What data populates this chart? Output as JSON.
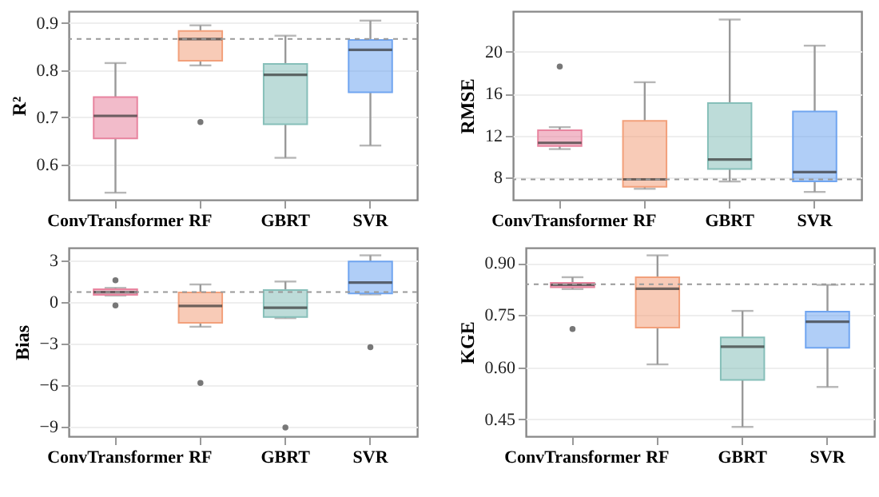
{
  "chart_data": [
    {
      "type": "box",
      "ylabel": "R²",
      "categories": [
        "ConvTransformer",
        "RF",
        "GBRT",
        "SVR"
      ],
      "colors": [
        "#e8849f",
        "#f2a07b",
        "#86bfb9",
        "#70a5f0"
      ],
      "ylim": [
        0.525,
        0.925
      ],
      "yticks": [
        0.6,
        0.7,
        0.8,
        0.9
      ],
      "grid": "y",
      "boxes": [
        {
          "low": 0.54,
          "q1": 0.655,
          "median": 0.703,
          "q3": 0.743,
          "high": 0.815
        },
        {
          "low": 0.81,
          "q1": 0.82,
          "median": 0.866,
          "q3": 0.883,
          "high": 0.895,
          "outliers": [
            0.69
          ]
        },
        {
          "low": 0.614,
          "q1": 0.685,
          "median": 0.79,
          "q3": 0.813,
          "high": 0.873
        },
        {
          "low": 0.64,
          "q1": 0.753,
          "median": 0.843,
          "q3": 0.864,
          "high": 0.905
        }
      ],
      "ref_lines": [
        {
          "axis": "y",
          "value": 0.866,
          "color": "#999999",
          "line_style": "dashed"
        }
      ]
    },
    {
      "type": "box",
      "ylabel": "RMSE",
      "categories": [
        "ConvTransformer",
        "RF",
        "GBRT",
        "SVR"
      ],
      "colors": [
        "#e8849f",
        "#f2a07b",
        "#86bfb9",
        "#70a5f0"
      ],
      "ylim": [
        5.85,
        23.9
      ],
      "yticks": [
        8,
        12,
        16,
        20
      ],
      "grid": "y",
      "boxes": [
        {
          "low": 10.7,
          "q1": 11.0,
          "median": 11.3,
          "q3": 12.5,
          "high": 12.8,
          "outliers": [
            18.6
          ]
        },
        {
          "low": 6.9,
          "q1": 7.1,
          "median": 7.8,
          "q3": 13.4,
          "high": 17.1
        },
        {
          "low": 7.6,
          "q1": 8.8,
          "median": 9.7,
          "q3": 15.1,
          "high": 23.1
        },
        {
          "low": 6.6,
          "q1": 7.6,
          "median": 8.5,
          "q3": 14.3,
          "high": 20.6
        }
      ],
      "ref_lines": [
        {
          "axis": "y",
          "value": 7.8,
          "color": "#999999",
          "line_style": "dashed"
        }
      ]
    },
    {
      "type": "box",
      "ylabel": "Bias",
      "categories": [
        "ConvTransformer",
        "RF",
        "GBRT",
        "SVR"
      ],
      "colors": [
        "#e8849f",
        "#f2a07b",
        "#86bfb9",
        "#70a5f0"
      ],
      "ylim": [
        -9.7,
        3.9
      ],
      "yticks": [
        -9,
        -6,
        -3,
        0,
        3
      ],
      "grid": "y",
      "boxes": [
        {
          "low": 0.45,
          "q1": 0.5,
          "median": 0.7,
          "q3": 0.9,
          "high": 1.0,
          "outliers": [
            1.55,
            -0.26
          ]
        },
        {
          "low": -1.8,
          "q1": -1.52,
          "median": -0.3,
          "q3": 0.67,
          "high": 1.25,
          "outliers": [
            -5.85
          ]
        },
        {
          "low": -1.18,
          "q1": -1.1,
          "median": -0.43,
          "q3": 0.84,
          "high": 1.46,
          "outliers": [
            -9.07
          ]
        },
        {
          "low": 0.53,
          "q1": 0.6,
          "median": 1.39,
          "q3": 2.9,
          "high": 3.35,
          "outliers": [
            -3.27
          ]
        }
      ],
      "ref_lines": [
        {
          "axis": "y",
          "value": 0.7,
          "color": "#999999",
          "line_style": "dashed"
        }
      ]
    },
    {
      "type": "box",
      "ylabel": "KGE",
      "categories": [
        "ConvTransformer",
        "RF",
        "GBRT",
        "SVR"
      ],
      "colors": [
        "#e8849f",
        "#f2a07b",
        "#86bfb9",
        "#70a5f0"
      ],
      "ylim": [
        0.401,
        0.944
      ],
      "yticks": [
        {
          "value": 0.45,
          "label": "0.45"
        },
        {
          "value": 0.6,
          "label": "0.60"
        },
        {
          "value": 0.75,
          "label": "0.75"
        },
        {
          "value": 0.9,
          "label": "0.90"
        }
      ],
      "grid": "y",
      "boxes": [
        {
          "low": 0.825,
          "q1": 0.83,
          "median": 0.837,
          "q3": 0.843,
          "high": 0.859,
          "outliers": [
            0.71
          ]
        },
        {
          "low": 0.608,
          "q1": 0.714,
          "median": 0.826,
          "q3": 0.859,
          "high": 0.922
        },
        {
          "low": 0.428,
          "q1": 0.563,
          "median": 0.659,
          "q3": 0.686,
          "high": 0.762
        },
        {
          "low": 0.543,
          "q1": 0.656,
          "median": 0.731,
          "q3": 0.76,
          "high": 0.837
        }
      ],
      "ref_lines": [
        {
          "axis": "y",
          "value": 0.839,
          "color": "#999999",
          "line_style": "dashed"
        }
      ]
    }
  ]
}
